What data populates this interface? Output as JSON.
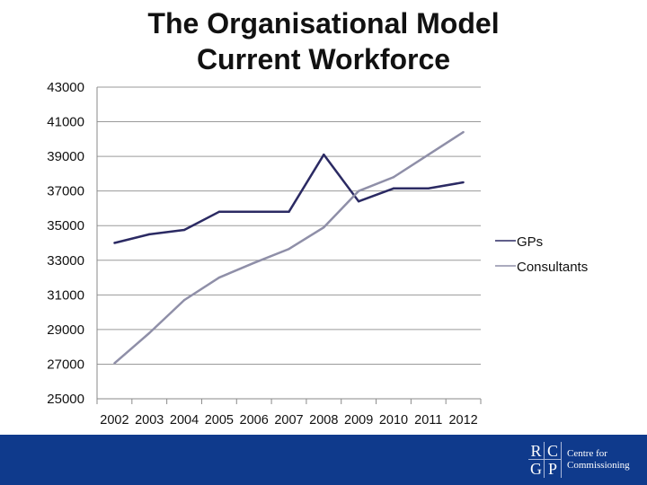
{
  "chart_data": {
    "type": "line",
    "title_lines": [
      "The Organisational Model",
      "Current Workforce"
    ],
    "xlabel": "",
    "ylabel": "",
    "categories": [
      "2002",
      "2003",
      "2004",
      "2005",
      "2006",
      "2007",
      "2008",
      "2009",
      "2010",
      "2011",
      "2012"
    ],
    "ylim": [
      25000,
      43000
    ],
    "yticks": [
      "25000",
      "27000",
      "29000",
      "31000",
      "33000",
      "35000",
      "37000",
      "39000",
      "41000",
      "43000"
    ],
    "grid": "horizontal",
    "legend_position": "right",
    "series": [
      {
        "name": "GPs",
        "color": "#2b2a63",
        "values": [
          34000,
          34500,
          34750,
          35800,
          35800,
          35800,
          39100,
          36400,
          37150,
          37150,
          37500
        ]
      },
      {
        "name": "Consultants",
        "color": "#8f8fa8",
        "values": [
          27050,
          28800,
          30700,
          32000,
          32850,
          33650,
          34900,
          37000,
          37800,
          39100,
          40400
        ]
      }
    ]
  },
  "footer": {
    "logo_letters": [
      "R",
      "C",
      "G",
      "P"
    ],
    "logo_text": [
      "Centre for",
      "Commissioning"
    ],
    "color": "#0f3a8c"
  }
}
